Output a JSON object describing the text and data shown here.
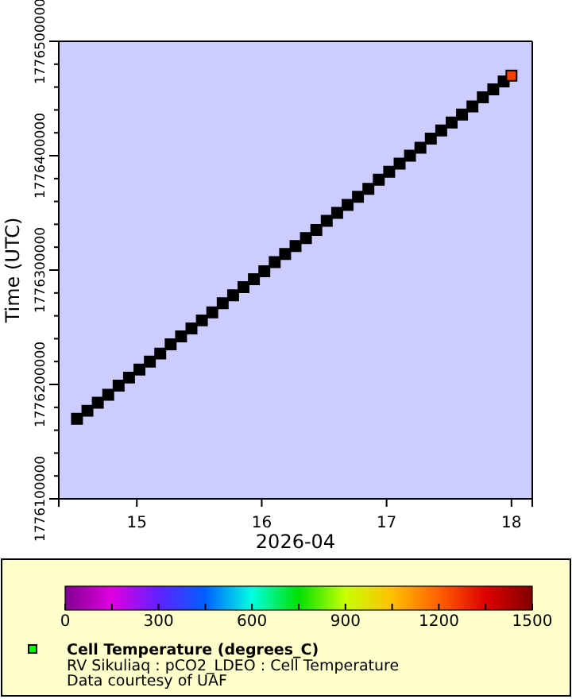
{
  "chart_data": {
    "type": "scatter",
    "xlabel": "2026-04",
    "ylabel": "Time (UTC)",
    "clabel": "Cell Temperature (degrees_C)",
    "annotations": [
      "RV Sikuliaq : pCO2_LDEO : Cell Temperature",
      "Data courtesy of UAF"
    ],
    "marker": "square",
    "grid": false,
    "xlim": [
      "2026-04-14T09:00",
      "2026-04-18T04:00"
    ],
    "xticks": [
      {
        "value": "2026-04-15",
        "label": "15"
      },
      {
        "value": "2026-04-16",
        "label": "16"
      },
      {
        "value": "2026-04-17",
        "label": "17"
      },
      {
        "value": "2026-04-18",
        "label": "18"
      }
    ],
    "ylim": [
      1776100000,
      1776500000
    ],
    "yticks": [
      1776100000,
      {
        "value": 1776120000,
        "label": null
      },
      {
        "value": 1776140000,
        "label": null
      },
      {
        "value": 1776160000,
        "label": null
      },
      {
        "value": 1776180000,
        "label": null
      },
      1776200000,
      {
        "value": 1776220000,
        "label": null
      },
      {
        "value": 1776240000,
        "label": null
      },
      {
        "value": 1776260000,
        "label": null
      },
      {
        "value": 1776280000,
        "label": null
      },
      1776300000,
      {
        "value": 1776320000,
        "label": null
      },
      {
        "value": 1776340000,
        "label": null
      },
      {
        "value": 1776360000,
        "label": null
      },
      {
        "value": 1776380000,
        "label": null
      },
      1776400000,
      {
        "value": 1776420000,
        "label": null
      },
      {
        "value": 1776440000,
        "label": null
      },
      {
        "value": 1776460000,
        "label": null
      },
      {
        "value": 1776480000,
        "label": null
      },
      1776500000
    ],
    "clim": [
      0,
      1500
    ],
    "cticks": [
      0,
      {
        "value": 150,
        "label": null
      },
      300,
      {
        "value": 450,
        "label": null
      },
      600,
      {
        "value": 750,
        "label": null
      },
      900,
      {
        "value": 1050,
        "label": null
      },
      1200,
      {
        "value": 1350,
        "label": null
      },
      1500
    ],
    "x": [
      "2026-04-14T12:30",
      "2026-04-14T14:30",
      "2026-04-14T16:30",
      "2026-04-14T18:30",
      "2026-04-14T20:30",
      "2026-04-14T22:30",
      "2026-04-15T00:30",
      "2026-04-15T02:30",
      "2026-04-15T04:30",
      "2026-04-15T06:30",
      "2026-04-15T08:30",
      "2026-04-15T10:30",
      "2026-04-15T12:30",
      "2026-04-15T14:30",
      "2026-04-15T16:30",
      "2026-04-15T18:30",
      "2026-04-15T20:30",
      "2026-04-15T22:30",
      "2026-04-16T00:30",
      "2026-04-16T02:30",
      "2026-04-16T04:30",
      "2026-04-16T06:30",
      "2026-04-16T08:30",
      "2026-04-16T10:30",
      "2026-04-16T12:30",
      "2026-04-16T14:30",
      "2026-04-16T16:30",
      "2026-04-16T18:30",
      "2026-04-16T20:30",
      "2026-04-16T22:30",
      "2026-04-17T00:30",
      "2026-04-17T02:30",
      "2026-04-17T04:30",
      "2026-04-17T06:30",
      "2026-04-17T08:30",
      "2026-04-17T10:30",
      "2026-04-17T12:30",
      "2026-04-17T14:30",
      "2026-04-17T16:30",
      "2026-04-17T18:30",
      "2026-04-17T20:30",
      "2026-04-17T22:30",
      "2026-04-18T00:00"
    ],
    "values": [
      1776170000,
      1776177000,
      1776184000,
      1776191000,
      1776199000,
      1776206000,
      1776213000,
      1776220000,
      1776227000,
      1776235000,
      1776242000,
      1776249000,
      1776256000,
      1776263000,
      1776271000,
      1776278000,
      1776285000,
      1776292000,
      1776299000,
      1776307000,
      1776314000,
      1776321000,
      1776328000,
      1776335000,
      1776343000,
      1776350000,
      1776357000,
      1776364000,
      1776371000,
      1776379000,
      1776386000,
      1776393000,
      1776400000,
      1776407000,
      1776415000,
      1776422000,
      1776429000,
      1776436000,
      1776443000,
      1776451000,
      1776458000,
      1776465000,
      1776470000
    ],
    "cvalues": [
      null,
      null,
      null,
      null,
      null,
      null,
      null,
      null,
      null,
      null,
      null,
      null,
      null,
      null,
      null,
      null,
      null,
      null,
      null,
      null,
      null,
      null,
      null,
      null,
      null,
      null,
      null,
      null,
      null,
      null,
      null,
      null,
      null,
      null,
      null,
      null,
      null,
      null,
      null,
      null,
      null,
      null,
      1250
    ]
  }
}
